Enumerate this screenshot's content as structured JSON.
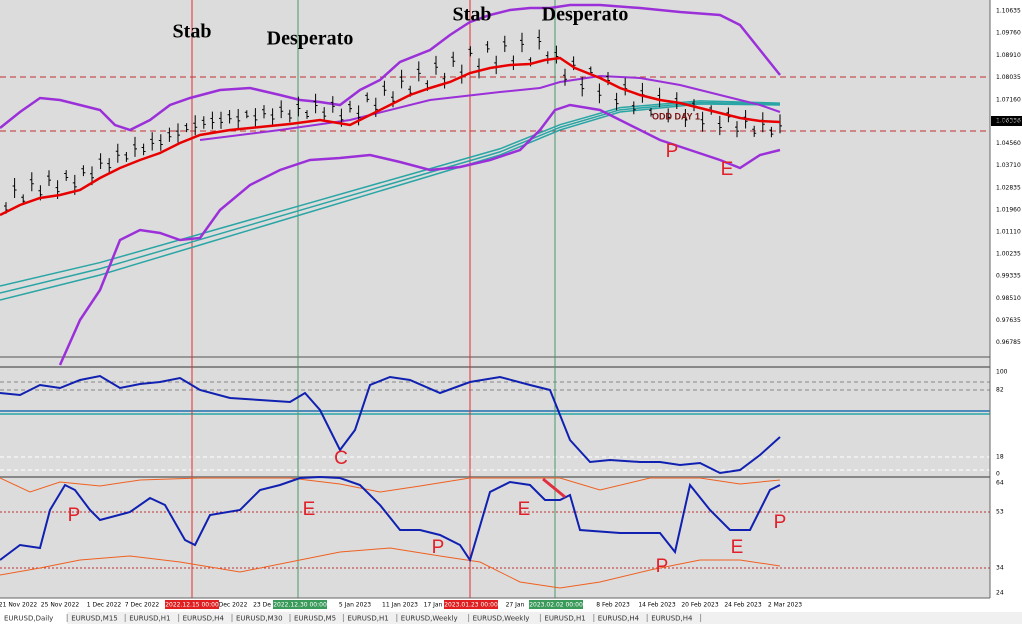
{
  "price_axis": {
    "labels": [
      "1.10635",
      "1.09760",
      "1.08910",
      "1.08035",
      "1.07160",
      "1.06336",
      "1.05435",
      "1.04560",
      "1.03710",
      "1.02835",
      "1.01960",
      "1.01110",
      "1.00235",
      "0.99335",
      "0.98510",
      "0.97635",
      "0.96785"
    ]
  },
  "indicator1_axis": {
    "labels": [
      "100",
      "82",
      "18",
      "0"
    ]
  },
  "indicator2_axis": {
    "labels": [
      "64",
      "53",
      "34",
      "24"
    ]
  },
  "date_axis": {
    "labels": [
      "21 Nov 2022",
      "25 Nov 2022",
      "1 Dec 2022",
      "7 Dec 2022",
      "2022.12.15 00:00",
      "Dec 2022",
      "23 De",
      "2022.12.30 00:00",
      "5 Jan 2023",
      "11 Jan 2023",
      "17 Jan",
      "2023.01.23 00:00",
      "27 Jan",
      "2023.02.02 00:00",
      "8 Feb 2023",
      "14 Feb 2023",
      "20 Feb 2023",
      "24 Feb 2023",
      "2 Mar 2023"
    ]
  },
  "annotations": [
    "Stab",
    "Desperato",
    "Stab",
    "Desperato",
    "ODD DAY 1",
    "P",
    "E",
    "C",
    "P",
    "E",
    "P",
    "E",
    "P",
    "E",
    "P"
  ],
  "tabs": [
    "EURUSD,Daily",
    "EURUSD,M15",
    "EURUSD,H1",
    "EURUSD,H4",
    "EURUSD,M30",
    "EURUSD,M5",
    "EURUSD,H1",
    "EURUSD,Weekly",
    "EURUSD,Weekly",
    "EURUSD,H1",
    "EURUSD,H4",
    "EURUSD,H4"
  ]
}
